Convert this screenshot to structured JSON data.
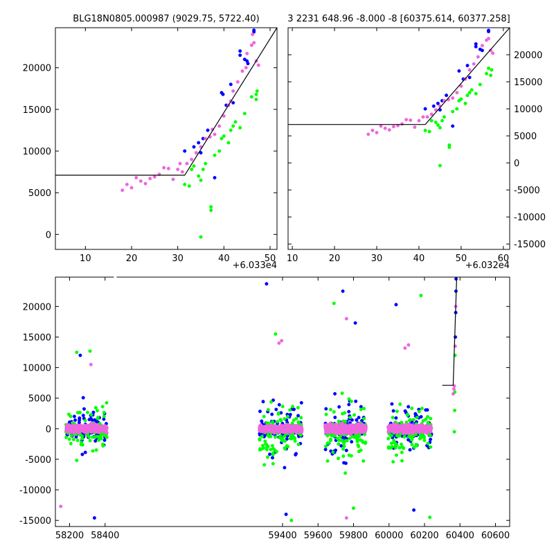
{
  "colors": {
    "blue": "#0000ff",
    "green": "#00ff00",
    "magenta": "#ee66dd",
    "line": "#000000",
    "frame": "#000000"
  },
  "chart_data": [
    {
      "type": "scatter",
      "title": "BLG18N0805.000987 (9029.75, 5722.40)",
      "offset_label": "+6.033e4",
      "xlim": [
        3.5,
        51.5
      ],
      "ylim": [
        -1800,
        24800
      ],
      "xticks": [
        10,
        20,
        30,
        40,
        50
      ],
      "yticks": [
        0,
        5000,
        10000,
        15000,
        20000
      ],
      "ytick_side": "left",
      "model": [
        [
          3.5,
          7100
        ],
        [
          31.5,
          7100
        ],
        [
          51.5,
          24800
        ]
      ],
      "series": [
        {
          "name": "blue",
          "color": "#0000ff",
          "points": [
            [
              31.5,
              10000
            ],
            [
              33.5,
              10500
            ],
            [
              34.5,
              11000
            ],
            [
              35.0,
              9800
            ],
            [
              35.5,
              11500
            ],
            [
              36.5,
              12500
            ],
            [
              38.0,
              6800
            ],
            [
              39.5,
              17000
            ],
            [
              39.8,
              16800
            ],
            [
              40.5,
              15500
            ],
            [
              41.5,
              18000
            ],
            [
              42.0,
              15800
            ],
            [
              43.5,
              22000
            ],
            [
              43.5,
              21500
            ],
            [
              44.5,
              21000
            ],
            [
              45.0,
              20800
            ],
            [
              45.2,
              20500
            ],
            [
              46.5,
              24500
            ],
            [
              46.5,
              24300
            ]
          ]
        },
        {
          "name": "green",
          "color": "#00ff00",
          "points": [
            [
              31.5,
              6000
            ],
            [
              32.5,
              5800
            ],
            [
              33.0,
              7800
            ],
            [
              33.5,
              8200
            ],
            [
              34.5,
              7000
            ],
            [
              35.0,
              6500
            ],
            [
              35.5,
              7800
            ],
            [
              36.0,
              8500
            ],
            [
              35.0,
              -300
            ],
            [
              37.2,
              3300
            ],
            [
              37.2,
              2900
            ],
            [
              38.0,
              9500
            ],
            [
              39.0,
              10000
            ],
            [
              39.5,
              11500
            ],
            [
              40.0,
              11800
            ],
            [
              41.0,
              11000
            ],
            [
              41.5,
              12500
            ],
            [
              42.0,
              13000
            ],
            [
              42.5,
              13500
            ],
            [
              43.5,
              12800
            ],
            [
              44.5,
              14500
            ],
            [
              46.0,
              16500
            ],
            [
              47.0,
              16200
            ],
            [
              47.2,
              17200
            ],
            [
              47.0,
              16800
            ]
          ]
        },
        {
          "name": "magenta",
          "color": "#ee66dd",
          "points": [
            [
              18.0,
              5300
            ],
            [
              19.0,
              6000
            ],
            [
              20.0,
              5600
            ],
            [
              21.0,
              6800
            ],
            [
              22.0,
              6400
            ],
            [
              23.0,
              6100
            ],
            [
              24.0,
              6700
            ],
            [
              25.0,
              6900
            ],
            [
              26.0,
              7200
            ],
            [
              27.0,
              8000
            ],
            [
              28.0,
              7900
            ],
            [
              29.0,
              6600
            ],
            [
              30.0,
              7800
            ],
            [
              30.5,
              8500
            ],
            [
              31.0,
              7500
            ],
            [
              32.0,
              8500
            ],
            [
              33.0,
              9000
            ],
            [
              34.0,
              9800
            ],
            [
              35.0,
              10500
            ],
            [
              36.0,
              11500
            ],
            [
              37.0,
              11700
            ],
            [
              37.5,
              12600
            ],
            [
              38.0,
              12000
            ],
            [
              39.0,
              13000
            ],
            [
              40.0,
              14200
            ],
            [
              41.0,
              15500
            ],
            [
              41.5,
              16000
            ],
            [
              42.0,
              17200
            ],
            [
              43.0,
              18300
            ],
            [
              44.0,
              19600
            ],
            [
              45.0,
              21700
            ],
            [
              46.0,
              22700
            ],
            [
              46.5,
              23000
            ],
            [
              47.0,
              20800
            ],
            [
              47.5,
              20300
            ],
            [
              46.2,
              24000
            ],
            [
              44.8,
              20000
            ]
          ]
        }
      ]
    },
    {
      "type": "scatter",
      "title": "3 2231 648.96 -8.000 -8 [60375.614, 60377.258]",
      "offset_label": "+6.032e4",
      "xlim": [
        9.0,
        61.5
      ],
      "ylim": [
        -16000,
        25000
      ],
      "xticks": [
        10,
        20,
        30,
        40,
        50,
        60
      ],
      "yticks": [
        -15000,
        -10000,
        -5000,
        0,
        5000,
        10000,
        15000,
        20000
      ],
      "ytick_side": "right",
      "model": [
        [
          9.0,
          7100
        ],
        [
          41.5,
          7100
        ],
        [
          61.5,
          25000
        ]
      ],
      "series": [
        {
          "name": "blue",
          "color": "#0000ff",
          "points": [
            [
              41.5,
              10000
            ],
            [
              43.5,
              10500
            ],
            [
              44.5,
              11000
            ],
            [
              45.0,
              9800
            ],
            [
              45.5,
              11500
            ],
            [
              46.5,
              12500
            ],
            [
              48.0,
              6800
            ],
            [
              49.5,
              17000
            ],
            [
              50.5,
              15500
            ],
            [
              51.5,
              18000
            ],
            [
              52.0,
              15800
            ],
            [
              53.5,
              22000
            ],
            [
              53.5,
              21500
            ],
            [
              54.5,
              21000
            ],
            [
              55.0,
              20800
            ],
            [
              56.5,
              24500
            ],
            [
              56.5,
              24300
            ]
          ]
        },
        {
          "name": "green",
          "color": "#00ff00",
          "points": [
            [
              41.5,
              6000
            ],
            [
              42.5,
              5800
            ],
            [
              43.0,
              7800
            ],
            [
              44.0,
              7500
            ],
            [
              44.5,
              7000
            ],
            [
              45.0,
              6500
            ],
            [
              45.5,
              7800
            ],
            [
              46.0,
              8500
            ],
            [
              47.2,
              3300
            ],
            [
              47.2,
              2900
            ],
            [
              45.0,
              -500
            ],
            [
              48.0,
              9500
            ],
            [
              49.0,
              10000
            ],
            [
              49.5,
              11500
            ],
            [
              50.0,
              11800
            ],
            [
              51.0,
              11000
            ],
            [
              51.5,
              12500
            ],
            [
              52.0,
              13000
            ],
            [
              52.5,
              13500
            ],
            [
              53.5,
              12800
            ],
            [
              54.5,
              14500
            ],
            [
              56.0,
              16500
            ],
            [
              57.0,
              16200
            ],
            [
              57.2,
              17200
            ],
            [
              56.5,
              17500
            ]
          ]
        },
        {
          "name": "magenta",
          "color": "#ee66dd",
          "points": [
            [
              28.0,
              5300
            ],
            [
              29.0,
              6000
            ],
            [
              30.0,
              5600
            ],
            [
              31.0,
              6800
            ],
            [
              32.0,
              6400
            ],
            [
              33.0,
              6100
            ],
            [
              34.0,
              6700
            ],
            [
              35.0,
              6900
            ],
            [
              36.0,
              7200
            ],
            [
              37.0,
              8000
            ],
            [
              38.0,
              7900
            ],
            [
              39.0,
              6600
            ],
            [
              40.0,
              7800
            ],
            [
              41.0,
              8500
            ],
            [
              42.0,
              8500
            ],
            [
              43.0,
              9000
            ],
            [
              44.0,
              9800
            ],
            [
              45.0,
              10500
            ],
            [
              46.0,
              11500
            ],
            [
              47.0,
              11700
            ],
            [
              48.0,
              12000
            ],
            [
              49.0,
              13000
            ],
            [
              50.0,
              14200
            ],
            [
              51.0,
              15500
            ],
            [
              52.0,
              17200
            ],
            [
              53.0,
              18300
            ],
            [
              54.0,
              19600
            ],
            [
              55.0,
              21700
            ],
            [
              56.0,
              22700
            ],
            [
              56.5,
              23000
            ],
            [
              57.0,
              20800
            ],
            [
              57.5,
              20300
            ]
          ]
        }
      ]
    },
    {
      "type": "scatter",
      "title": "",
      "xlim": [
        58120,
        60680
      ],
      "ylim": [
        -16000,
        24800
      ],
      "xticks": [
        58200,
        58400,
        59400,
        59600,
        59800,
        60000,
        60200,
        60400,
        60600
      ],
      "yticks": [
        -15000,
        -10000,
        -5000,
        0,
        5000,
        10000,
        15000,
        20000
      ],
      "ytick_side": "left",
      "x_break": [
        58430,
        59260
      ],
      "model": [
        [
          60300,
          7100
        ],
        [
          60361.5,
          7100
        ],
        [
          60381.5,
          24800
        ]
      ],
      "seasons": [
        {
          "start": 58180,
          "end": 58410,
          "core_spread": 1000,
          "wing_spread": 4500,
          "outliers": [
            [
              58260,
              12000
            ],
            [
              58315,
              12700
            ],
            [
              58150,
              -12700
            ],
            [
              58340,
              -14600
            ],
            [
              58240,
              12500
            ],
            [
              58320,
              10500
            ]
          ]
        },
        {
          "start": 59270,
          "end": 59510,
          "core_spread": 1000,
          "wing_spread": 6000,
          "outliers": [
            [
              59310,
              23700
            ],
            [
              59360,
              15500
            ],
            [
              59380,
              14000
            ],
            [
              59420,
              -14000
            ],
            [
              59450,
              -15000
            ],
            [
              59395,
              14400
            ]
          ]
        },
        {
          "start": 59640,
          "end": 59870,
          "core_spread": 1200,
          "wing_spread": 6000,
          "outliers": [
            [
              59740,
              22500
            ],
            [
              59690,
              20500
            ],
            [
              59760,
              18000
            ],
            [
              59810,
              17300
            ],
            [
              59800,
              -13000
            ],
            [
              59760,
              -14600
            ]
          ]
        },
        {
          "start": 59995,
          "end": 60240,
          "core_spread": 1100,
          "wing_spread": 5500,
          "outliers": [
            [
              60040,
              20300
            ],
            [
              60180,
              21800
            ],
            [
              60110,
              13700
            ],
            [
              60140,
              -13300
            ],
            [
              60230,
              -14500
            ],
            [
              60090,
              13200
            ]
          ]
        }
      ],
      "event_points": [
        {
          "color": "#0000ff",
          "x": 60378,
          "y": 24500
        },
        {
          "color": "#0000ff",
          "x": 60377,
          "y": 22500
        },
        {
          "color": "#0000ff",
          "x": 60376,
          "y": 19000
        },
        {
          "color": "#0000ff",
          "x": 60374,
          "y": 15000
        },
        {
          "color": "#00ff00",
          "x": 60370,
          "y": 3000
        },
        {
          "color": "#00ff00",
          "x": 60368,
          "y": -500
        },
        {
          "color": "#00ff00",
          "x": 60372,
          "y": 12000
        },
        {
          "color": "#00ff00",
          "x": 60371,
          "y": 6000
        },
        {
          "color": "#ee66dd",
          "x": 60366,
          "y": 6500
        },
        {
          "color": "#ee66dd",
          "x": 60368,
          "y": 7000
        },
        {
          "color": "#ee66dd",
          "x": 60373,
          "y": 13500
        },
        {
          "color": "#ee66dd",
          "x": 60376,
          "y": 20000
        },
        {
          "color": "#ee66dd",
          "x": 60362,
          "y": 5700
        }
      ]
    }
  ]
}
